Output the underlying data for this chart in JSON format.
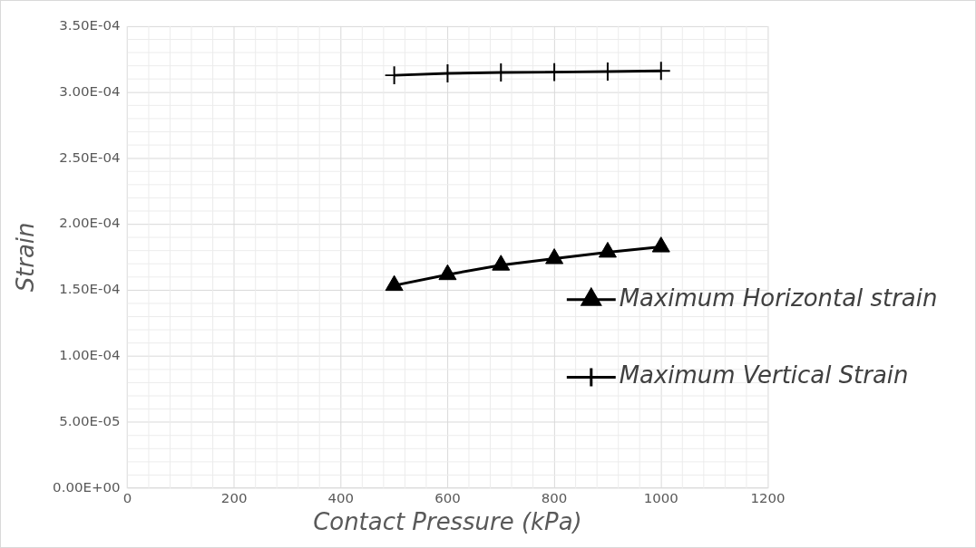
{
  "chart_data": {
    "type": "line",
    "xlabel": "Contact Pressure (kPa)",
    "ylabel": "Strain",
    "x": [
      500,
      600,
      700,
      800,
      900,
      1000
    ],
    "series": [
      {
        "name": "Maximum Horizontal strain",
        "color": "#000000",
        "marker": "triangle",
        "values": [
          0.0001536,
          0.0001618,
          0.000169,
          0.0001739,
          0.0001788,
          0.0001828
        ]
      },
      {
        "name": "Maximum Vertical Strain",
        "color": "#000000",
        "marker": "cross",
        "values": [
          0.0003128,
          0.0003142,
          0.0003149,
          0.0003152,
          0.0003156,
          0.0003162
        ]
      }
    ],
    "xlim": [
      0,
      1200
    ],
    "xticks": [
      0,
      200,
      400,
      600,
      800,
      1000,
      1200
    ],
    "ylim": [
      0,
      0.00035
    ],
    "yticks": [
      {
        "value": 0,
        "label": "0.00E+00"
      },
      {
        "value": 5e-05,
        "label": "5.00E-05"
      },
      {
        "value": 0.0001,
        "label": "1.00E-04"
      },
      {
        "value": 0.00015,
        "label": "1.50E-04"
      },
      {
        "value": 0.0002,
        "label": "2.00E-04"
      },
      {
        "value": 0.00025,
        "label": "2.50E-04"
      },
      {
        "value": 0.0003,
        "label": "3.00E-04"
      },
      {
        "value": 0.00035,
        "label": "3.50E-04"
      }
    ],
    "grid": true,
    "legend": "right",
    "line_style": "solid"
  }
}
